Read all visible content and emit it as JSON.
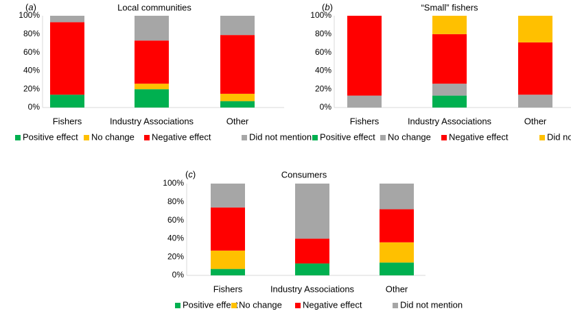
{
  "chart_data": [
    {
      "type": "bar",
      "stacked": true,
      "panel_label": "(a)",
      "title": "Local communities",
      "categories": [
        "Fishers",
        "Industry Associations",
        "Other"
      ],
      "yticks": [
        "0%",
        "20%",
        "40%",
        "60%",
        "80%",
        "100%"
      ],
      "ylim": [
        0,
        100
      ],
      "series": [
        {
          "name": "Positive effect",
          "color": "#00b050",
          "values": [
            14,
            20,
            7
          ]
        },
        {
          "name": "No change",
          "color": "#ffc000",
          "values": [
            0,
            6,
            8
          ]
        },
        {
          "name": "Negative effect",
          "color": "#ff0000",
          "values": [
            79,
            47,
            64
          ]
        },
        {
          "name": "Did not mention",
          "color": "#a6a6a6",
          "values": [
            7,
            27,
            21
          ]
        }
      ],
      "legend_position": "bottom"
    },
    {
      "type": "bar",
      "stacked": true,
      "panel_label": "(b)",
      "title": "“Small” fishers",
      "categories": [
        "Fishers",
        "Industry Associations",
        "Other"
      ],
      "yticks": [
        "0%",
        "20%",
        "40%",
        "60%",
        "80%",
        "100%"
      ],
      "ylim": [
        0,
        100
      ],
      "series": [
        {
          "name": "Positive effect",
          "color": "#00b050",
          "values": [
            0,
            13,
            0
          ]
        },
        {
          "name": "No change",
          "color": "#a6a6a6",
          "values": [
            13,
            13,
            14
          ]
        },
        {
          "name": "Negative effect",
          "color": "#ff0000",
          "values": [
            87,
            54,
            57
          ]
        },
        {
          "name": "Did not mention",
          "color": "#ffc000",
          "values": [
            0,
            20,
            29
          ]
        }
      ],
      "legend_position": "bottom"
    },
    {
      "type": "bar",
      "stacked": true,
      "panel_label": "(c)",
      "title": "Consumers",
      "categories": [
        "Fishers",
        "Industry Associations",
        "Other"
      ],
      "yticks": [
        "0%",
        "20%",
        "40%",
        "60%",
        "80%",
        "100%"
      ],
      "ylim": [
        0,
        100
      ],
      "series": [
        {
          "name": "Positive effect",
          "color": "#00b050",
          "values": [
            7,
            13,
            14
          ]
        },
        {
          "name": "No change",
          "color": "#ffc000",
          "values": [
            20,
            0,
            22
          ]
        },
        {
          "name": "Negative effect",
          "color": "#ff0000",
          "values": [
            47,
            27,
            36
          ]
        },
        {
          "name": "Did not mention",
          "color": "#a6a6a6",
          "values": [
            26,
            60,
            28
          ]
        }
      ],
      "legend_position": "bottom"
    }
  ]
}
